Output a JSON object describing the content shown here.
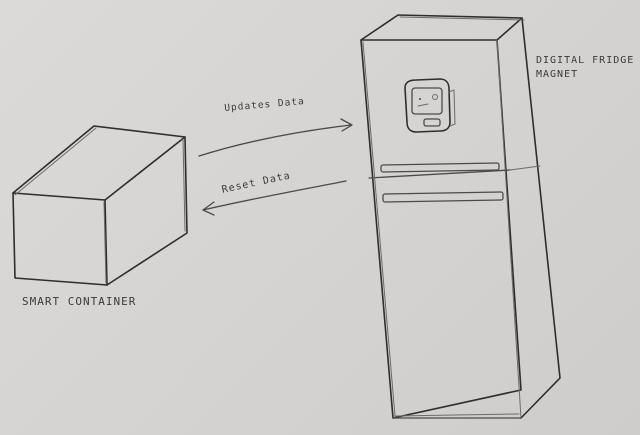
{
  "labels": {
    "smart_container": "SMART CONTAINER",
    "fridge_magnet_line1": "DIGITAL FRIDGE",
    "fridge_magnet_line2": "MAGNET",
    "updates_data": "Updates Data",
    "reset_data": "Reset Data"
  },
  "colors": {
    "paper": "#d9d7d5",
    "pencil": "#4a4a4a"
  },
  "icons": {
    "container": "box-sketch",
    "fridge": "fridge-sketch",
    "magnet": "screen-device-sketch"
  }
}
